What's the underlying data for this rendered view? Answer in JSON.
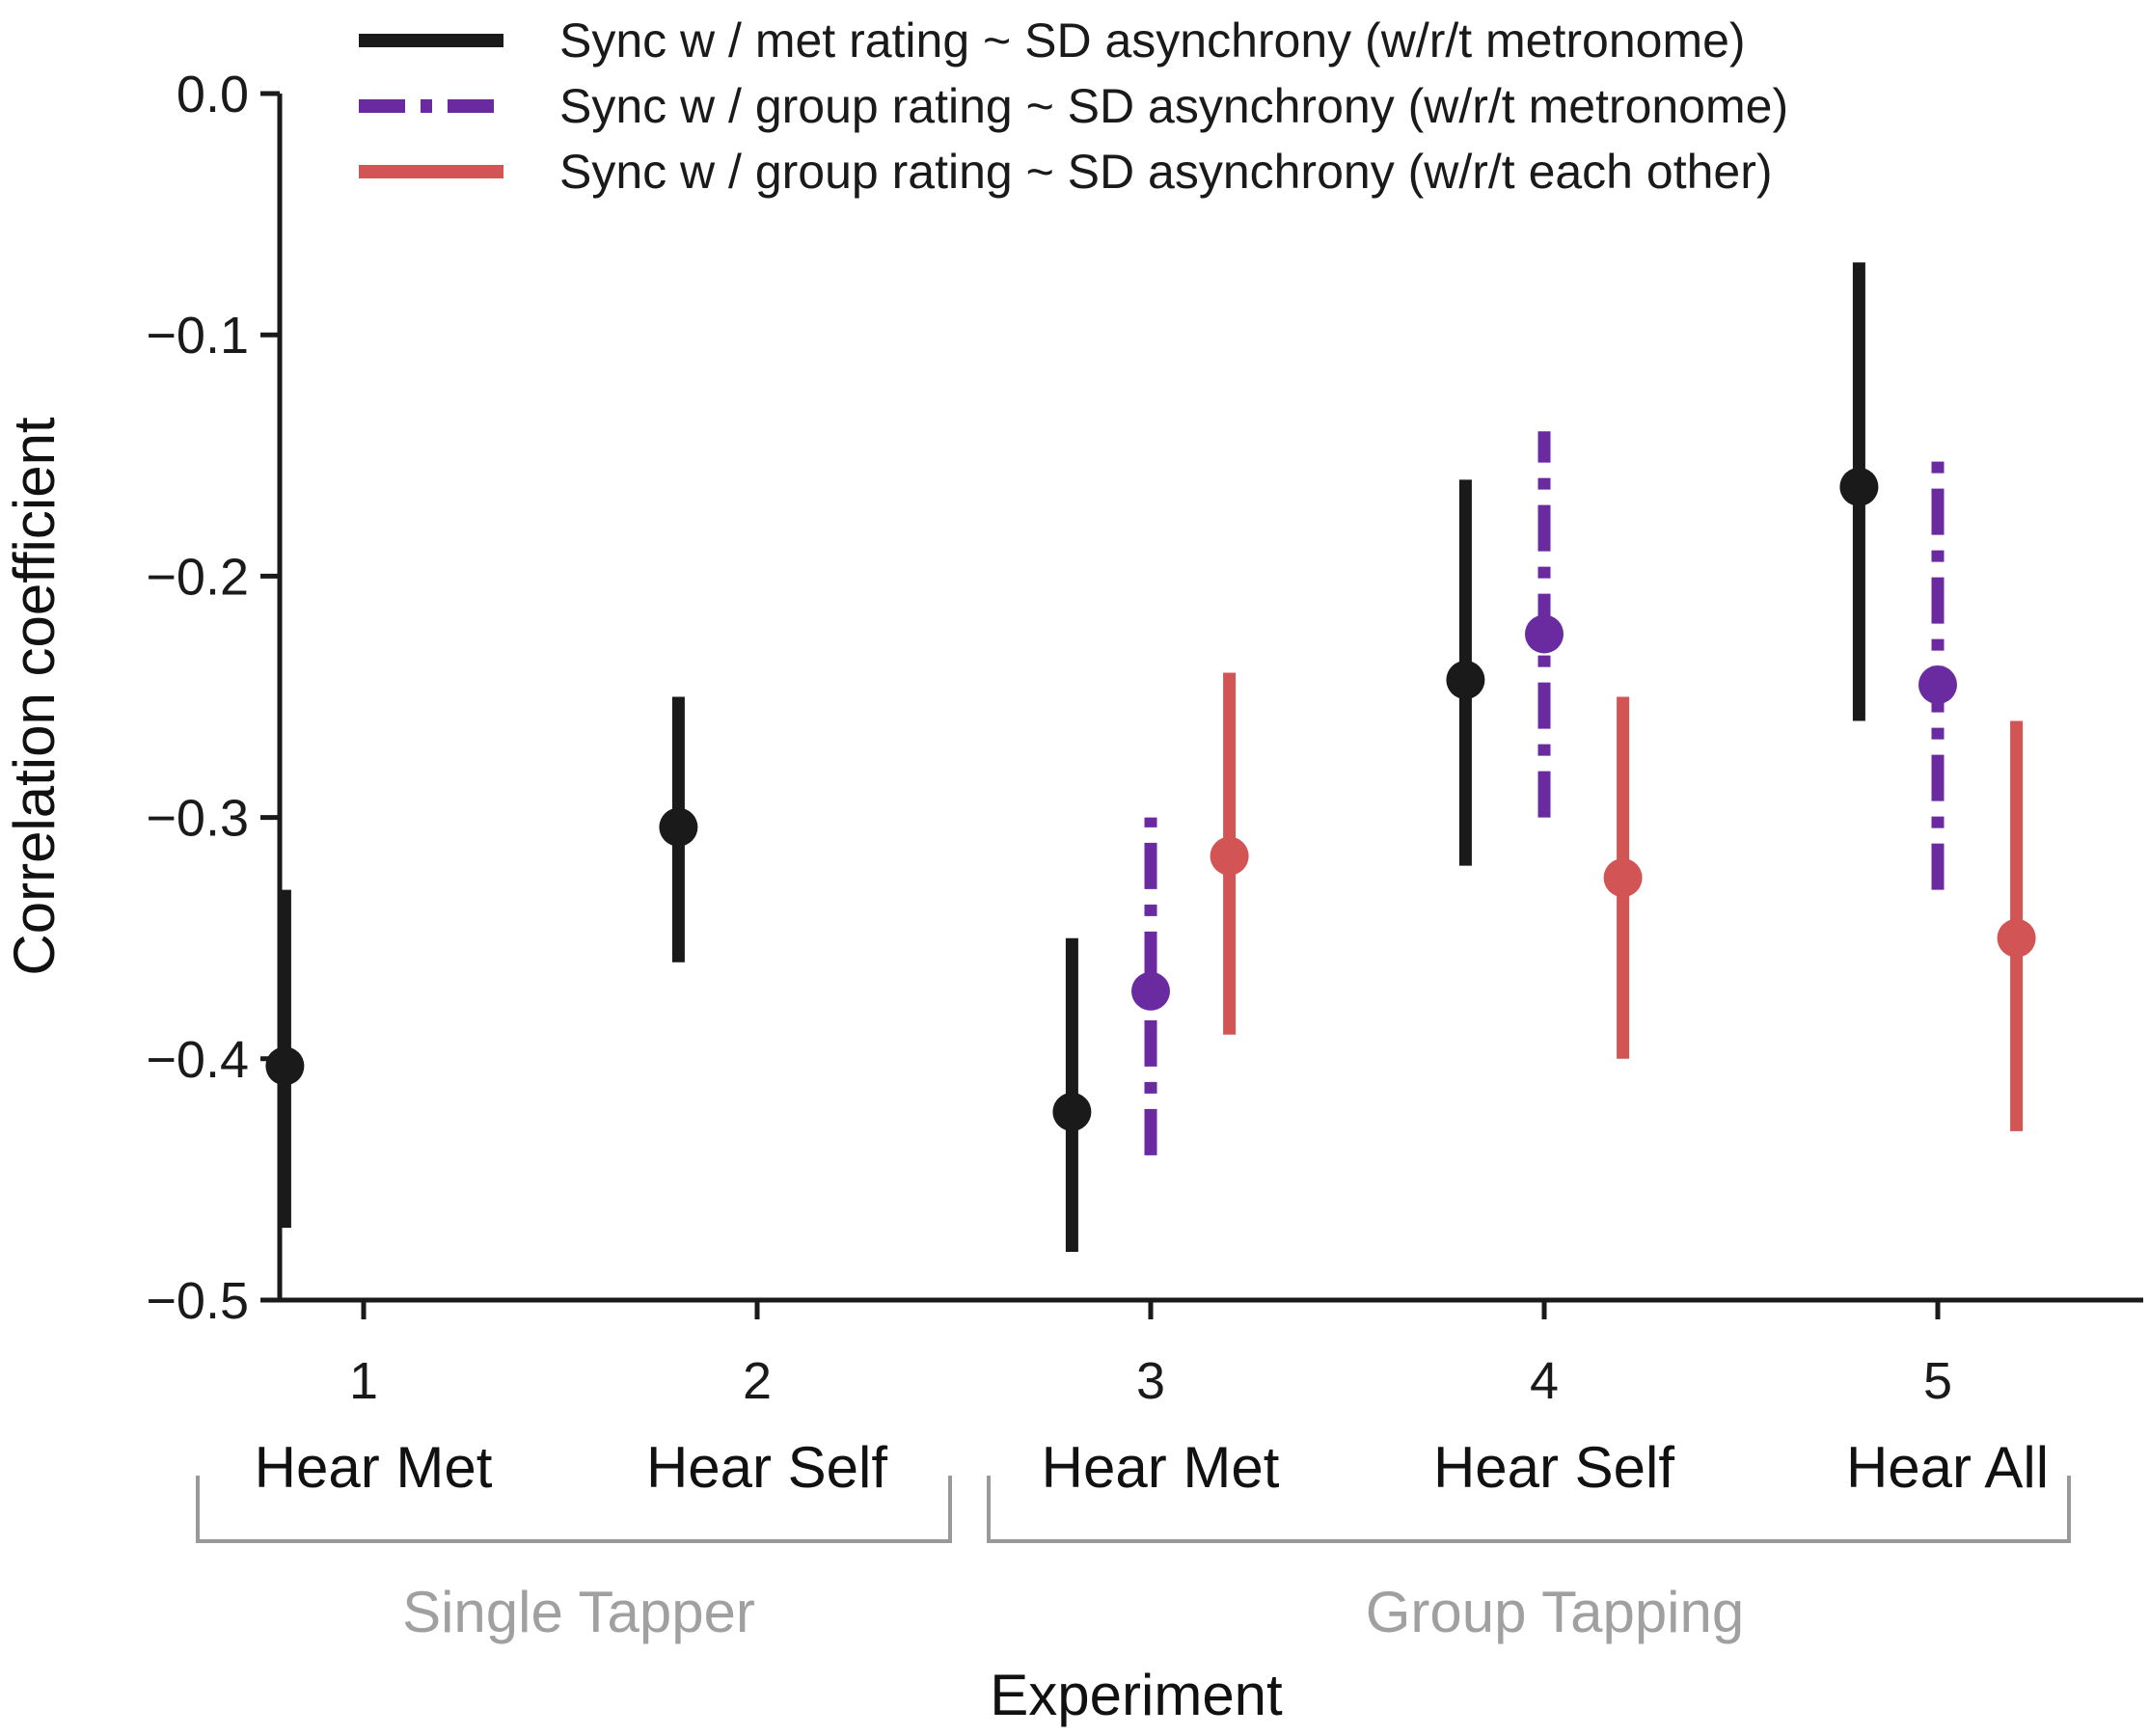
{
  "chart_data": {
    "type": "scatter",
    "chart_style": "point estimates with vertical error bars",
    "ylabel": "Correlation coefficient",
    "xlabel": "Experiment",
    "ylim": [
      -0.5,
      0.0
    ],
    "yticks": [
      0.0,
      -0.1,
      -0.2,
      -0.3,
      -0.4,
      -0.5
    ],
    "ytick_labels": [
      "0.0",
      "−0.1",
      "−0.2",
      "−0.3",
      "−0.4",
      "−0.5"
    ],
    "categories": [
      "1",
      "2",
      "3",
      "4",
      "5"
    ],
    "condition_labels": [
      "Hear Met",
      "Hear Self",
      "Hear Met",
      "Hear Self",
      "Hear All"
    ],
    "groups": [
      {
        "label": "Single Tapper",
        "experiments": [
          "1",
          "2"
        ]
      },
      {
        "label": "Group Tapping",
        "experiments": [
          "3",
          "4",
          "5"
        ]
      }
    ],
    "legend_position": "top",
    "colors": {
      "axis": "#1a1a1a",
      "bracket": "#999999",
      "group_label": "#a0a0a0"
    },
    "series": [
      {
        "name": "Sync w / met rating ~ SD asynchrony (w/r/t metronome)",
        "color": "#1a1a1a",
        "linestyle": "solid",
        "offset": -0.2,
        "points": [
          {
            "experiment": "1",
            "value": -0.403,
            "ci": [
              -0.47,
              -0.33
            ]
          },
          {
            "experiment": "2",
            "value": -0.304,
            "ci": [
              -0.36,
              -0.25
            ]
          },
          {
            "experiment": "3",
            "value": -0.422,
            "ci": [
              -0.48,
              -0.35
            ]
          },
          {
            "experiment": "4",
            "value": -0.243,
            "ci": [
              -0.32,
              -0.16
            ]
          },
          {
            "experiment": "5",
            "value": -0.163,
            "ci": [
              -0.26,
              -0.07
            ]
          }
        ]
      },
      {
        "name": "Sync w / group rating ~ SD asynchrony (w/r/t metronome)",
        "color": "#6a2aa0",
        "linestyle": "dashdot",
        "offset": 0.0,
        "points": [
          {
            "experiment": "3",
            "value": -0.372,
            "ci": [
              -0.44,
              -0.3
            ]
          },
          {
            "experiment": "4",
            "value": -0.224,
            "ci": [
              -0.3,
              -0.14
            ]
          },
          {
            "experiment": "5",
            "value": -0.245,
            "ci": [
              -0.33,
              -0.15
            ]
          }
        ]
      },
      {
        "name": "Sync w / group rating ~ SD asynchrony (w/r/t each other)",
        "color": "#d25454",
        "linestyle": "solid",
        "offset": 0.2,
        "points": [
          {
            "experiment": "3",
            "value": -0.316,
            "ci": [
              -0.39,
              -0.24
            ]
          },
          {
            "experiment": "4",
            "value": -0.325,
            "ci": [
              -0.4,
              -0.25
            ]
          },
          {
            "experiment": "5",
            "value": -0.35,
            "ci": [
              -0.43,
              -0.26
            ]
          }
        ]
      }
    ]
  }
}
